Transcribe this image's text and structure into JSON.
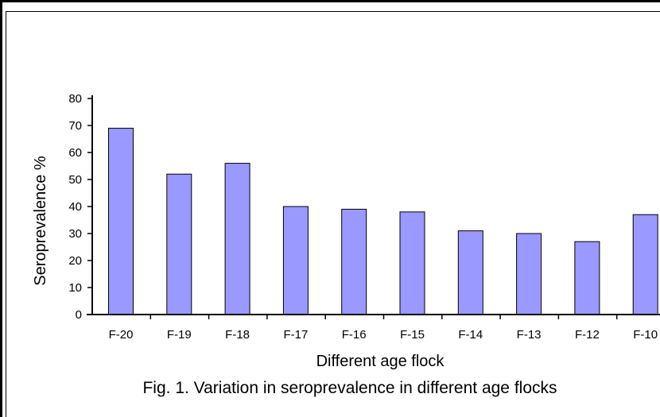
{
  "chart_data": {
    "type": "bar",
    "categories": [
      "F-20",
      "F-19",
      "F-18",
      "F-17",
      "F-16",
      "F-15",
      "F-14",
      "F-13",
      "F-12",
      "F-10"
    ],
    "values": [
      69,
      52,
      56,
      40,
      39,
      38,
      31,
      30,
      27,
      37
    ],
    "xlabel": "Different age flock",
    "ylabel": "Seroprevalence %",
    "ylim": [
      0,
      80
    ],
    "yticks": [
      0,
      10,
      20,
      30,
      40,
      50,
      60,
      70,
      80
    ],
    "grid": false,
    "legend": "none",
    "caption": "Fig. 1. Variation in seroprevalence in different age flocks",
    "bar_color": "#9999ff",
    "bar_edge_color": "#000000"
  }
}
